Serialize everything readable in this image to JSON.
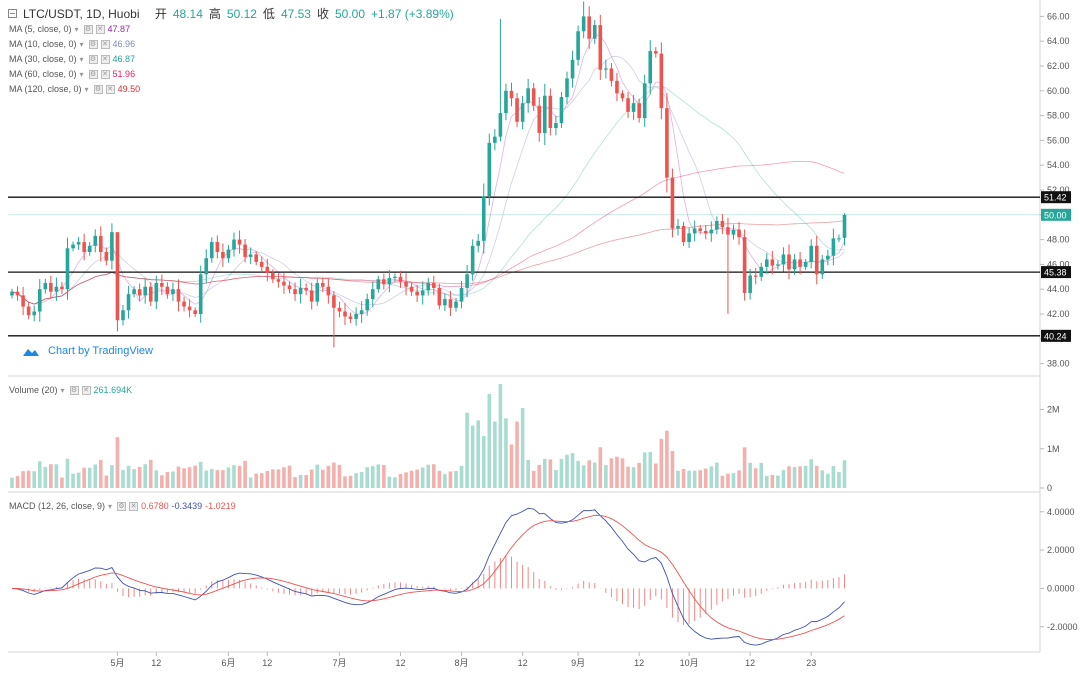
{
  "header": {
    "symbol": "LTC/USDT, 1D, Huobi",
    "open_label": "开",
    "open": "48.14",
    "high_label": "高",
    "high": "50.12",
    "low_label": "低",
    "low": "47.53",
    "close_label": "收",
    "close": "50.00",
    "change": "+1.87 (+3.89%)"
  },
  "ma_legend": [
    {
      "label": "MA (5, close, 0)",
      "value": "47.87",
      "color": "#9c27b0"
    },
    {
      "label": "MA (10, close, 0)",
      "value": "46.96",
      "color": "#7e8bb8"
    },
    {
      "label": "MA (30, close, 0)",
      "value": "46.87",
      "color": "#26a69a"
    },
    {
      "label": "MA (60, close, 0)",
      "value": "51.96",
      "color": "#e91e63"
    },
    {
      "label": "MA (120, close, 0)",
      "value": "49.50",
      "color": "#d32f2f"
    }
  ],
  "volume_legend": {
    "label": "Volume (20)",
    "value": "261.694K"
  },
  "macd_legend": {
    "label": "MACD (12, 26, close, 9)",
    "v1": "0.6780",
    "v2": "-0.3439",
    "v3": "-1.0219"
  },
  "watermark": "Chart by TradingView",
  "colors": {
    "up": "#26a69a",
    "down": "#ef5350",
    "up_vol": "#a8dcd0",
    "down_vol": "#f4b0ad",
    "macd": "#3f51b5",
    "signal": "#ef5350"
  },
  "chart_data": {
    "type": "candlestick",
    "title": "LTC/USDT, 1D, Huobi",
    "price_axis": {
      "min": 37,
      "max": 67,
      "ticks": [
        38,
        40,
        42,
        44,
        46,
        48,
        50,
        52,
        54,
        56,
        58,
        60,
        62,
        64,
        66
      ]
    },
    "x_ticks": [
      {
        "label": "5月",
        "day": 19
      },
      {
        "label": "12",
        "day": 26
      },
      {
        "label": "6月",
        "day": 39
      },
      {
        "label": "12",
        "day": 46
      },
      {
        "label": "7月",
        "day": 59
      },
      {
        "label": "12",
        "day": 70
      },
      {
        "label": "8月",
        "day": 81
      },
      {
        "label": "12",
        "day": 92
      },
      {
        "label": "9月",
        "day": 102
      },
      {
        "label": "12",
        "day": 113
      },
      {
        "label": "10月",
        "day": 122
      },
      {
        "label": "12",
        "day": 133
      },
      {
        "label": "23",
        "day": 144
      }
    ],
    "closes": [
      43.8,
      43.5,
      42.6,
      41.9,
      42.2,
      44.0,
      44.5,
      43.8,
      44.2,
      44.0,
      47.3,
      47.6,
      47.8,
      47.0,
      47.5,
      48.3,
      47.0,
      46.3,
      48.6,
      41.5,
      42.3,
      43.6,
      44.0,
      43.5,
      44.2,
      43.0,
      44.5,
      44.2,
      43.6,
      44.0,
      43.0,
      42.6,
      42.3,
      42.0,
      45.2,
      46.5,
      47.8,
      47.0,
      46.5,
      47.2,
      48.0,
      47.6,
      46.6,
      46.8,
      46.2,
      45.8,
      45.3,
      44.8,
      44.6,
      44.3,
      44.0,
      43.6,
      44.1,
      43.9,
      43.0,
      44.5,
      44.2,
      43.5,
      42.5,
      42.2,
      41.8,
      41.6,
      42.0,
      42.3,
      43.2,
      44.0,
      44.8,
      44.4,
      44.9,
      45.0,
      44.6,
      44.2,
      43.8,
      43.5,
      43.9,
      44.5,
      44.1,
      42.7,
      43.2,
      42.5,
      43.0,
      44.1,
      45.2,
      47.5,
      47.9,
      51.5,
      55.8,
      56.3,
      58.2,
      60.0,
      59.4,
      57.5,
      59.0,
      60.2,
      58.8,
      56.6,
      59.6,
      57.0,
      57.4,
      59.5,
      61.0,
      62.5,
      64.8,
      66.0,
      64.2,
      65.3,
      61.7,
      61.8,
      60.8,
      59.8,
      59.4,
      58.3,
      59.0,
      57.8,
      60.6,
      63.2,
      63.0,
      58.6,
      53.0,
      48.9,
      49.1,
      47.8,
      48.5,
      48.9,
      48.7,
      48.5,
      48.8,
      49.5,
      49.0,
      48.4,
      48.8,
      48.2,
      43.7,
      45.1,
      45.0,
      45.8,
      46.4,
      45.9,
      46.0,
      46.8,
      45.6,
      46.4,
      45.8,
      46.2,
      47.5,
      45.2,
      46.4,
      46.7,
      48.1,
      48.1,
      50.0
    ],
    "horizontal_levels": [
      51.42,
      45.38,
      40.24
    ],
    "last_price": 50.0,
    "volume_axis": {
      "ticks": [
        "0",
        "1M",
        "2M"
      ]
    },
    "macd_axis": {
      "min": -2.9,
      "max": 4.3,
      "ticks": [
        "4.0000",
        "2.0000",
        "0.0000",
        "-2.0000"
      ]
    }
  }
}
